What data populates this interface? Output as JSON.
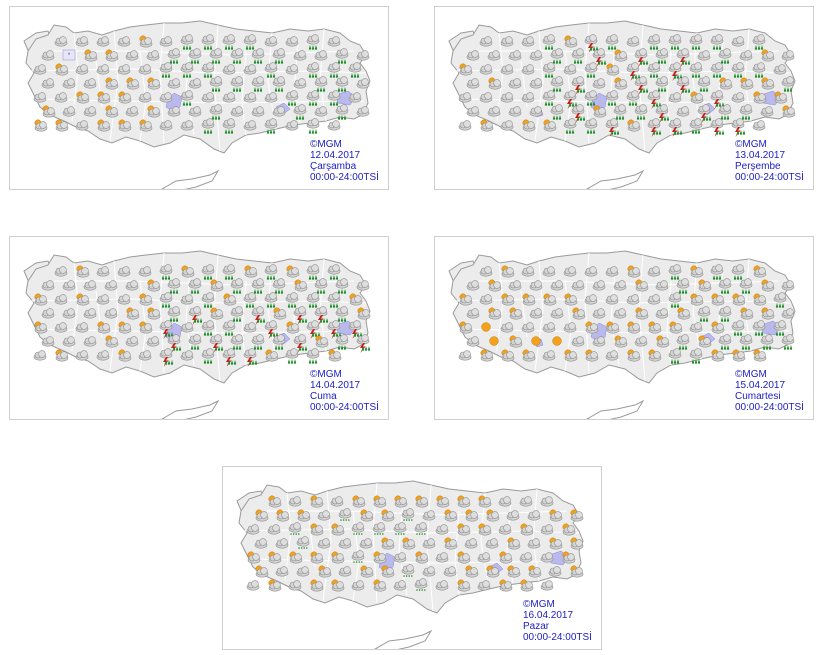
{
  "colors": {
    "caption_text": "#1c1cc4",
    "land": "#ececec",
    "border": "#9a9a9a",
    "lake": "#b9b9ee",
    "cloud": "#cfcfcf",
    "sun": "#f3a21a",
    "rain": "#1f8f2a",
    "lightning": "#d01818"
  },
  "panels": [
    {
      "copyright": "©MGM",
      "date": "12.04.2017",
      "day": "Çarşamba",
      "time": "00:00-24:00TSİ",
      "icons": "mixed: partly-cloudy, rain, snow/sleet boxes in northwest",
      "dominant_icons": [
        "partly-cloudy-icon",
        "rain-icon",
        "snow-icon"
      ]
    },
    {
      "copyright": "©MGM",
      "date": "13.04.2017",
      "day": "Perşembe",
      "time": "00:00-24:00TSİ",
      "dominant_icons": [
        "partly-cloudy-icon",
        "rain-icon",
        "thunderstorm-icon"
      ]
    },
    {
      "copyright": "©MGM",
      "date": "14.04.2017",
      "day": "Cuma",
      "time": "00:00-24:00TSİ",
      "dominant_icons": [
        "cloudy-icon",
        "rain-icon",
        "thunderstorm-icon"
      ]
    },
    {
      "copyright": "©MGM",
      "date": "15.04.2017",
      "day": "Cumartesi",
      "time": "00:00-24:00TSİ",
      "dominant_icons": [
        "cloudy-icon",
        "partly-cloudy-icon",
        "rain-icon",
        "sunny-icon"
      ]
    },
    {
      "copyright": "©MGM",
      "date": "16.04.2017",
      "day": "Pazar",
      "time": "00:00-24:00TSİ",
      "dominant_icons": [
        "partly-cloudy-icon",
        "cloudy-icon",
        "drizzle-icon"
      ]
    }
  ]
}
